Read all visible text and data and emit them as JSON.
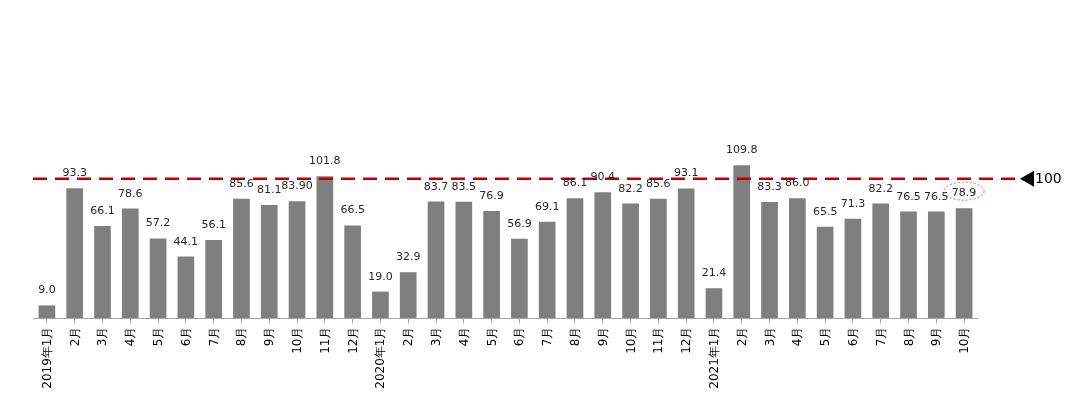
{
  "chart_data": {
    "type": "bar",
    "categories": [
      "2019年1月",
      "2月",
      "3月",
      "4月",
      "5月",
      "6月",
      "7月",
      "8月",
      "9月",
      "10月",
      "11月",
      "12月",
      "2020年1月",
      "2月",
      "3月",
      "4月",
      "5月",
      "6月",
      "7月",
      "8月",
      "9月",
      "10月",
      "11月",
      "12月",
      "2021年1月",
      "2月",
      "3月",
      "4月",
      "5月",
      "6月",
      "7月",
      "8月",
      "9月",
      "10月"
    ],
    "values": [
      9.0,
      93.3,
      66.1,
      78.6,
      57.2,
      44.1,
      56.1,
      85.6,
      81.1,
      83.9,
      101.8,
      66.5,
      19.0,
      32.9,
      83.7,
      83.5,
      76.9,
      56.9,
      69.1,
      86.1,
      90.4,
      82.2,
      85.6,
      93.1,
      21.4,
      109.8,
      83.3,
      86.0,
      65.5,
      71.3,
      82.2,
      76.5,
      76.5,
      78.9
    ],
    "value_labels": [
      "9.0",
      "93.3",
      "66.1",
      "78.6",
      "57.2",
      "44.1",
      "56.1",
      "85.6",
      "81.1",
      "83.90",
      "101.8",
      "66.5",
      "19.0",
      "32.9",
      "83.7",
      "83.5",
      "76.9",
      "56.9",
      "69.1",
      "86.1",
      "90.4",
      "82.2",
      "85.6",
      "93.1",
      "21.4",
      "109.8",
      "83.3",
      "86.0",
      "65.5",
      "71.3",
      "82.2",
      "76.5",
      "76.5",
      "78.9"
    ],
    "color": "#7f7f7f",
    "ref_lines": [
      {
        "axis": "y",
        "value": 100,
        "label": "100",
        "color": "#c00000",
        "line_style": "dashed"
      }
    ]
  }
}
